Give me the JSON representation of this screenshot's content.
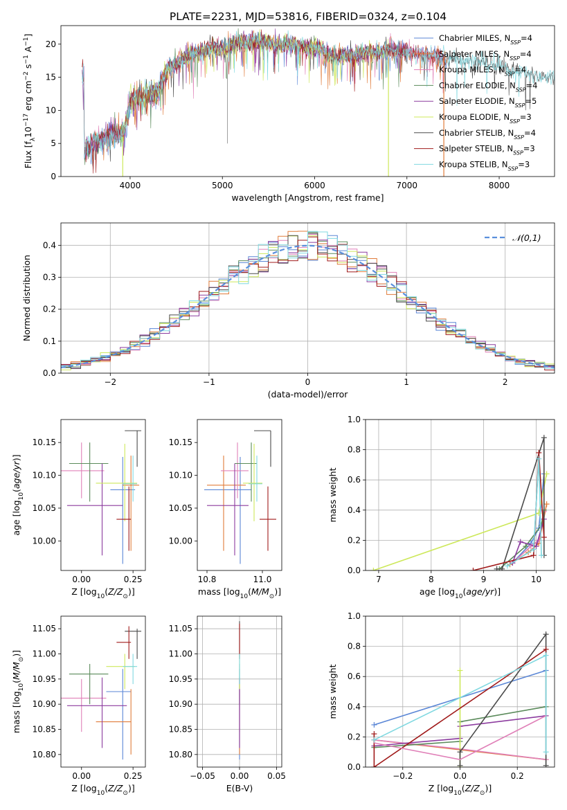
{
  "figure_title": "PLATE=2231, MJD=53816, FIBERID=0324, z=0.104",
  "models": [
    {
      "name": "Chabrier MILES, N",
      "nssp": "=4",
      "color": "#5a86d6"
    },
    {
      "name": "Salpeter MILES, N",
      "nssp": "=4",
      "color": "#e07b39"
    },
    {
      "name": "Kroupa MILES, N",
      "nssp": "=4",
      "color": "#e07b39"
    },
    {
      "name": "Chabrier ELODIE, N",
      "nssp": "=4",
      "color": "#5a8a5a"
    },
    {
      "name": "Salpeter ELODIE, N",
      "nssp": "=5",
      "color": "#8b3a9e"
    },
    {
      "name": "Kroupa ELODIE, N",
      "nssp": "=3",
      "color": "#cde85a"
    },
    {
      "name": "Chabrier STELIB, N",
      "nssp": "=4",
      "color": "#4a4a4a"
    },
    {
      "name": "Salpeter STELIB, N",
      "nssp": "=3",
      "color": "#a01a1a"
    },
    {
      "name": "Kroupa STELIB, N",
      "nssp": "=3",
      "color": "#7fd8e0"
    }
  ],
  "legend_sub": "SSP",
  "chart_data": [
    {
      "id": "spectrum",
      "type": "line",
      "xlabel": "wavelength [Angstrom, rest frame]",
      "ylabel": "Flux [f",
      "xlim": [
        3250,
        8600
      ],
      "ylim": [
        0,
        22.8
      ],
      "xticks": [
        4000,
        5000,
        6000,
        7000,
        8000
      ],
      "yticks": [
        0,
        5,
        10,
        15,
        20
      ],
      "continuum": {
        "x": [
          3500,
          3600,
          3700,
          3800,
          3900,
          3950,
          4000,
          4100,
          4200,
          4300,
          4400,
          4500,
          4600,
          4700,
          4800,
          4900,
          5000,
          5200,
          5400,
          5600,
          5800,
          6000,
          6200,
          6400,
          6600,
          6800,
          7000,
          7200,
          7400,
          7600,
          7800,
          8000,
          8200,
          8400,
          8600
        ],
        "y": [
          3.8,
          5.0,
          5.5,
          6.5,
          6.3,
          7.5,
          11.5,
          12.0,
          12.5,
          13.0,
          16.0,
          17.0,
          18.2,
          18.8,
          19.0,
          19.5,
          19.3,
          20.2,
          20.3,
          20.0,
          19.8,
          19.5,
          18.2,
          18.3,
          18.8,
          19.0,
          18.8,
          18.3,
          17.9,
          17.5,
          17.2,
          16.8,
          15.8,
          15.3,
          15.0
        ]
      }
    },
    {
      "id": "residuals",
      "type": "line",
      "xlabel": "(data-model)/error",
      "ylabel": "Normed distribution",
      "xlim": [
        -2.5,
        2.5
      ],
      "ylim": [
        0,
        0.47
      ],
      "xticks": [
        -2,
        -1,
        0,
        1,
        2
      ],
      "yticks": [
        0.0,
        0.1,
        0.2,
        0.3,
        0.4
      ],
      "legend": "𝒩(0,1)",
      "grid": true
    },
    {
      "id": "age_vs_Z",
      "type": "scatter",
      "xlabel": "Z [log",
      "ylabel": "age  [log",
      "xlim": [
        -0.1,
        0.31
      ],
      "ylim": [
        9.955,
        10.185
      ],
      "xticks": [
        0.0,
        0.25
      ],
      "yticks": [
        10.0,
        10.05,
        10.1,
        10.15
      ],
      "points": [
        {
          "x": 0.2,
          "y": 10.078,
          "ex": [
            0.14,
            0.26
          ],
          "ey": [
            9.965,
            10.128
          ]
        },
        {
          "x": 0.24,
          "y": 10.085,
          "ex": [
            0.2,
            0.28
          ],
          "ey": [
            9.985,
            10.13
          ]
        },
        {
          "x": 0.0,
          "y": 10.107,
          "ex": [
            -0.1,
            0.11
          ],
          "ey": [
            10.065,
            10.15
          ]
        },
        {
          "x": 0.04,
          "y": 10.118,
          "ex": [
            -0.06,
            0.13
          ],
          "ey": [
            10.06,
            10.15
          ]
        },
        {
          "x": 0.1,
          "y": 10.054,
          "ex": [
            -0.07,
            0.2
          ],
          "ey": [
            9.978,
            10.118
          ]
        },
        {
          "x": 0.21,
          "y": 10.088,
          "ex": [
            0.07,
            0.27
          ],
          "ey": [
            10.03,
            10.148
          ]
        },
        {
          "x": 0.27,
          "y": 10.168,
          "ex": [
            0.21,
            0.29
          ],
          "ey": [
            10.113,
            10.168
          ]
        },
        {
          "x": 0.23,
          "y": 10.033,
          "ex": [
            0.17,
            0.24
          ],
          "ey": [
            9.985,
            10.083
          ]
        },
        {
          "x": 0.25,
          "y": 10.087,
          "ex": [
            0.2,
            0.27
          ],
          "ey": [
            10.06,
            10.13
          ]
        }
      ]
    },
    {
      "id": "age_vs_mass",
      "type": "scatter",
      "xlabel": "mass [log",
      "ylabel": "",
      "xlim": [
        10.765,
        11.07
      ],
      "ylim": [
        9.955,
        10.185
      ],
      "xticks": [
        10.8,
        11.0
      ],
      "yticks": [
        10.0,
        10.05,
        10.1,
        10.15
      ],
      "points": [
        {
          "x": 10.92,
          "y": 10.078,
          "ex": [
            10.79,
            10.96
          ],
          "ey": [
            9.965,
            10.128
          ]
        },
        {
          "x": 10.86,
          "y": 10.085,
          "ex": [
            10.8,
            10.94
          ],
          "ey": [
            9.985,
            10.13
          ]
        },
        {
          "x": 10.91,
          "y": 10.107,
          "ex": [
            10.85,
            10.95
          ],
          "ey": [
            10.065,
            10.15
          ]
        },
        {
          "x": 10.96,
          "y": 10.118,
          "ex": [
            10.9,
            10.98
          ],
          "ey": [
            10.06,
            10.15
          ]
        },
        {
          "x": 10.9,
          "y": 10.054,
          "ex": [
            10.8,
            10.95
          ],
          "ey": [
            9.978,
            10.118
          ]
        },
        {
          "x": 10.97,
          "y": 10.088,
          "ex": [
            10.93,
            11.0
          ],
          "ey": [
            10.03,
            10.148
          ]
        },
        {
          "x": 11.03,
          "y": 10.168,
          "ex": [
            10.97,
            11.03
          ],
          "ey": [
            10.113,
            10.168
          ]
        },
        {
          "x": 11.02,
          "y": 10.033,
          "ex": [
            10.99,
            11.05
          ],
          "ey": [
            9.985,
            10.083
          ]
        },
        {
          "x": 10.98,
          "y": 10.087,
          "ex": [
            10.95,
            11.0
          ],
          "ey": [
            10.06,
            10.13
          ]
        }
      ]
    },
    {
      "id": "weight_vs_age",
      "type": "line",
      "xlabel": "age  [log",
      "ylabel": "mass weight",
      "xlim": [
        6.75,
        10.35
      ],
      "ylim": [
        0,
        1.0
      ],
      "xticks": [
        7,
        8,
        9,
        10
      ],
      "yticks": [
        0.0,
        0.2,
        0.4,
        0.6,
        0.8,
        1.0
      ],
      "grid": true,
      "series": [
        {
          "x": [
            9.55,
            9.9,
            10.05,
            10.15
          ],
          "y": [
            0.05,
            0.18,
            0.28,
            0.64
          ]
        },
        {
          "x": [
            9.5,
            9.85,
            10.05,
            10.2
          ],
          "y": [
            0.04,
            0.12,
            0.18,
            0.44
          ]
        },
        {
          "x": [
            9.55,
            9.9,
            10.05,
            10.15
          ],
          "y": [
            0.05,
            0.16,
            0.2,
            0.39
          ]
        },
        {
          "x": [
            9.3,
            9.8,
            10.1,
            10.15
          ],
          "y": [
            0.01,
            0.16,
            0.3,
            0.4
          ]
        },
        {
          "x": [
            9.55,
            9.7,
            10.0,
            10.15
          ],
          "y": [
            0.05,
            0.19,
            0.16,
            0.34
          ]
        },
        {
          "x": [
            6.9,
            10.05,
            10.2
          ],
          "y": [
            0.0,
            0.38,
            0.64
          ]
        },
        {
          "x": [
            9.25,
            9.35,
            10.15,
            10.15
          ],
          "y": [
            0.01,
            0.01,
            0.88,
            0.1
          ]
        },
        {
          "x": [
            8.8,
            9.95,
            10.05,
            10.15
          ],
          "y": [
            0.0,
            0.1,
            0.78,
            0.22
          ]
        },
        {
          "x": [
            9.45,
            9.95,
            10.05,
            10.1
          ],
          "y": [
            0.03,
            0.14,
            0.74,
            0.1
          ]
        }
      ]
    },
    {
      "id": "mass_vs_Z",
      "type": "scatter",
      "xlabel": "Z [log",
      "ylabel": "mass [log",
      "xlim": [
        -0.1,
        0.31
      ],
      "ylim": [
        10.775,
        11.075
      ],
      "xticks": [
        0.0,
        0.25
      ],
      "yticks": [
        10.8,
        10.85,
        10.9,
        10.95,
        11.0,
        11.05
      ],
      "points": [
        {
          "x": 0.2,
          "y": 10.925,
          "ex": [
            0.12,
            0.24
          ],
          "ey": [
            10.79,
            10.97
          ]
        },
        {
          "x": 0.24,
          "y": 10.865,
          "ex": [
            0.07,
            0.24
          ],
          "ey": [
            10.8,
            10.93
          ]
        },
        {
          "x": 0.0,
          "y": 10.912,
          "ex": [
            -0.1,
            0.12
          ],
          "ey": [
            10.845,
            10.95
          ]
        },
        {
          "x": 0.04,
          "y": 10.96,
          "ex": [
            -0.06,
            0.13
          ],
          "ey": [
            10.9,
            10.98
          ]
        },
        {
          "x": 0.1,
          "y": 10.897,
          "ex": [
            -0.07,
            0.22
          ],
          "ey": [
            10.813,
            10.953
          ]
        },
        {
          "x": 0.21,
          "y": 10.975,
          "ex": [
            0.12,
            0.26
          ],
          "ey": [
            10.93,
            11.0
          ]
        },
        {
          "x": 0.27,
          "y": 11.045,
          "ex": [
            0.21,
            0.29
          ],
          "ey": [
            10.99,
            11.05
          ]
        },
        {
          "x": 0.23,
          "y": 11.023,
          "ex": [
            0.17,
            0.24
          ],
          "ey": [
            10.99,
            11.055
          ]
        },
        {
          "x": 0.25,
          "y": 10.975,
          "ex": [
            0.2,
            0.27
          ],
          "ey": [
            10.94,
            11.0
          ]
        }
      ]
    },
    {
      "id": "mass_vs_ebv",
      "type": "scatter",
      "xlabel": "E(B-V)",
      "ylabel": "",
      "xlim": [
        -0.057,
        0.057
      ],
      "ylim": [
        10.775,
        11.075
      ],
      "xticks": [
        -0.05,
        0.0,
        0.05
      ],
      "yticks": [
        10.8,
        10.85,
        10.9,
        10.95,
        11.0,
        11.05
      ],
      "grid": true,
      "points": [
        {
          "x": 0.0,
          "y": 10.925,
          "ex": [
            0.0,
            0.0
          ],
          "ey": [
            10.79,
            10.97
          ]
        },
        {
          "x": 0.0,
          "y": 10.865,
          "ex": [
            0.0,
            0.0
          ],
          "ey": [
            10.8,
            10.93
          ]
        },
        {
          "x": 0.0,
          "y": 10.912,
          "ex": [
            0.0,
            0.0
          ],
          "ey": [
            10.845,
            10.95
          ]
        },
        {
          "x": 0.0,
          "y": 10.96,
          "ex": [
            0.0,
            0.0
          ],
          "ey": [
            10.9,
            10.98
          ]
        },
        {
          "x": 0.0,
          "y": 10.897,
          "ex": [
            0.0,
            0.0
          ],
          "ey": [
            10.813,
            10.953
          ]
        },
        {
          "x": 0.0,
          "y": 10.975,
          "ex": [
            0.0,
            0.0
          ],
          "ey": [
            10.93,
            11.0
          ]
        },
        {
          "x": 0.0,
          "y": 11.045,
          "ex": [
            0.0,
            0.0
          ],
          "ey": [
            10.99,
            11.065
          ]
        },
        {
          "x": 0.0,
          "y": 11.023,
          "ex": [
            0.0,
            0.0
          ],
          "ey": [
            10.99,
            11.06
          ]
        },
        {
          "x": 0.0,
          "y": 10.975,
          "ex": [
            0.0,
            0.0
          ],
          "ey": [
            10.94,
            11.0
          ]
        }
      ]
    },
    {
      "id": "weight_vs_Z",
      "type": "line",
      "xlabel": "Z [log",
      "ylabel": "mass weight",
      "xlim": [
        -0.33,
        0.33
      ],
      "ylim": [
        0,
        1.0
      ],
      "xticks": [
        -0.2,
        0.0,
        0.2
      ],
      "yticks": [
        0.0,
        0.2,
        0.4,
        0.6,
        0.8,
        1.0
      ],
      "grid": true,
      "series": [
        {
          "x": [
            -0.3,
            0.3
          ],
          "y": [
            0.28,
            0.64
          ]
        },
        {
          "x": [
            -0.3,
            0.3
          ],
          "y": [
            0.18,
            0.05
          ]
        },
        {
          "x": [
            -0.3,
            0.0,
            0.3
          ],
          "y": [
            0.18,
            0.12,
            0.05
          ]
        },
        {
          "x": [
            -0.3,
            0.0,
            0.0,
            0.3
          ],
          "y": [
            0.13,
            0.17,
            0.3,
            0.4
          ]
        },
        {
          "x": [
            -0.3,
            0.0,
            0.0,
            0.3
          ],
          "y": [
            0.14,
            0.19,
            0.27,
            0.34
          ]
        },
        {
          "x": [
            0.0,
            0.0
          ],
          "y": [
            0.64,
            0.0
          ]
        },
        {
          "x": [
            0.0,
            0.0,
            0.3,
            0.3
          ],
          "y": [
            0.01,
            0.1,
            0.88,
            0.01
          ]
        },
        {
          "x": [
            -0.3,
            -0.3,
            0.3
          ],
          "y": [
            0.22,
            0.0,
            0.78
          ]
        },
        {
          "x": [
            -0.3,
            0.3,
            0.3
          ],
          "y": [
            0.18,
            0.74,
            0.1
          ]
        }
      ],
      "extra_pink": {
        "x": [
          -0.3,
          0.0,
          0.3
        ],
        "y": [
          0.16,
          0.05,
          0.34
        ]
      }
    }
  ]
}
